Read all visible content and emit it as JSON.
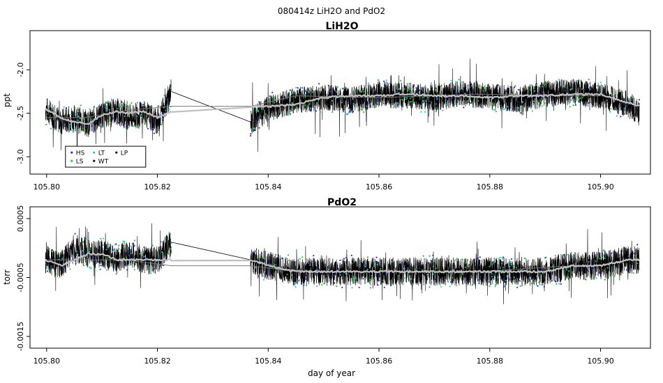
{
  "figure": {
    "suptitle": "080414z   LiH2O and PdO2",
    "xlabel": "day of year"
  },
  "chart_data": [
    {
      "type": "line",
      "title": "LiH2O",
      "xlabel": "",
      "ylabel": "ppt",
      "xlim": [
        105.797,
        105.909
      ],
      "ylim": [
        -3.2,
        -1.55
      ],
      "x_ticks": [
        105.8,
        105.82,
        105.84,
        105.86,
        105.88,
        105.9
      ],
      "x_tick_labels": [
        "105.80",
        "105.82",
        "105.84",
        "105.86",
        "105.88",
        "105.90"
      ],
      "y_ticks": [
        -3.0,
        -2.5,
        -2.0
      ],
      "y_tick_labels": [
        "-3.0",
        "-2.5",
        "-2.0"
      ],
      "grid": false,
      "data_gap": [
        105.8225,
        105.8368
      ],
      "legend": {
        "placement": "bottom-left",
        "entries": [
          {
            "label": "HS",
            "color": "#2b2bd6"
          },
          {
            "label": "LS",
            "color": "#22c022"
          },
          {
            "label": "LT",
            "color": "#22c8c8"
          },
          {
            "label": "WT",
            "color": "#000000"
          },
          {
            "label": "LP",
            "color": "#000000"
          }
        ]
      },
      "series": [
        {
          "kind": "raw",
          "color": "#000000",
          "x": [
            105.7998,
            105.8025,
            105.805,
            105.8075,
            105.81,
            105.8125,
            105.815,
            105.8175,
            105.82,
            105.8225,
            105.8368,
            105.84,
            105.845,
            105.85,
            105.855,
            105.86,
            105.865,
            105.87,
            105.875,
            105.88,
            105.885,
            105.89,
            105.895,
            105.9,
            105.905,
            105.907
          ],
          "y": [
            -2.45,
            -2.6,
            -2.55,
            -2.62,
            -2.52,
            -2.48,
            -2.55,
            -2.5,
            -2.6,
            -2.25,
            -2.6,
            -2.45,
            -2.35,
            -2.32,
            -2.35,
            -2.28,
            -2.3,
            -2.32,
            -2.28,
            -2.3,
            -2.35,
            -2.28,
            -2.25,
            -2.3,
            -2.4,
            -2.5
          ],
          "range": [
            -3.05,
            -1.65
          ]
        },
        {
          "kind": "smoothed",
          "color": "#c0c0c0",
          "x": [
            105.7998,
            105.8025,
            105.805,
            105.8075,
            105.81,
            105.8125,
            105.815,
            105.8175,
            105.82,
            105.8225,
            105.8368,
            105.84,
            105.845,
            105.85,
            105.855,
            105.86,
            105.865,
            105.87,
            105.875,
            105.88,
            105.885,
            105.89,
            105.895,
            105.9,
            105.905,
            105.907
          ],
          "y": [
            -2.45,
            -2.55,
            -2.6,
            -2.62,
            -2.52,
            -2.48,
            -2.5,
            -2.48,
            -2.55,
            -2.48,
            -2.42,
            -2.42,
            -2.4,
            -2.32,
            -2.3,
            -2.3,
            -2.28,
            -2.3,
            -2.3,
            -2.32,
            -2.3,
            -2.3,
            -2.28,
            -2.28,
            -2.38,
            -2.42
          ]
        },
        {
          "kind": "segment-means",
          "color": "#7a7a7a",
          "x": [
            105.7998,
            105.807,
            105.814,
            105.8225,
            105.8368,
            105.845,
            105.86,
            105.878,
            105.895,
            105.9
          ],
          "y": [
            -2.55,
            -2.55,
            -2.47,
            -2.42,
            -2.42,
            -2.3,
            -2.32,
            -2.28,
            -2.3,
            -2.3
          ]
        }
      ]
    },
    {
      "type": "line",
      "title": "PdO2",
      "xlabel": "day of year",
      "ylabel": "torr",
      "xlim": [
        105.797,
        105.909
      ],
      "ylim": [
        -0.0017,
        0.0007
      ],
      "x_ticks": [
        105.8,
        105.82,
        105.84,
        105.86,
        105.88,
        105.9
      ],
      "x_tick_labels": [
        "105.80",
        "105.82",
        "105.84",
        "105.86",
        "105.88",
        "105.90"
      ],
      "y_ticks": [
        -0.0015,
        -0.0005,
        0.0005
      ],
      "y_tick_labels": [
        "-0.0015",
        "-0.0005",
        "0.0005"
      ],
      "grid": false,
      "data_gap": [
        105.8225,
        105.8368
      ],
      "series": [
        {
          "kind": "raw",
          "color": "#000000",
          "x": [
            105.7998,
            105.8025,
            105.805,
            105.8075,
            105.81,
            105.8125,
            105.815,
            105.8175,
            105.82,
            105.8225,
            105.8368,
            105.84,
            105.845,
            105.85,
            105.855,
            105.86,
            105.865,
            105.87,
            105.875,
            105.88,
            105.885,
            105.89,
            105.895,
            105.9,
            105.905,
            105.907
          ],
          "y": [
            -0.0002,
            -0.0003,
            0.0,
            -0.0001,
            -0.0001,
            -0.0002,
            -0.0001,
            -0.0002,
            -0.0002,
            0.0001,
            -0.0002,
            -0.0003,
            -0.0004,
            -0.0004,
            -0.0004,
            -0.0004,
            -0.0004,
            -0.0004,
            -0.0004,
            -0.0004,
            -0.0004,
            -0.0004,
            -0.0003,
            -0.0003,
            -0.0002,
            -0.0002
          ],
          "range": [
            -0.00165,
            0.00055
          ]
        },
        {
          "kind": "smoothed",
          "color": "#c0c0c0",
          "x": [
            105.7998,
            105.8025,
            105.805,
            105.8075,
            105.81,
            105.8125,
            105.815,
            105.8175,
            105.82,
            105.8225,
            105.8368,
            105.84,
            105.845,
            105.85,
            105.855,
            105.86,
            105.865,
            105.87,
            105.875,
            105.88,
            105.885,
            105.89,
            105.895,
            105.9,
            105.905,
            105.907
          ],
          "y": [
            -0.0002,
            -0.0003,
            -0.0002,
            -0.0001,
            -0.0001,
            -0.0002,
            -0.0002,
            -0.0002,
            -0.0002,
            -0.0002,
            -0.0002,
            -0.0003,
            -0.0004,
            -0.0004,
            -0.0004,
            -0.0004,
            -0.0004,
            -0.0004,
            -0.0004,
            -0.0004,
            -0.0004,
            -0.0004,
            -0.0003,
            -0.0003,
            -0.0002,
            -0.0002
          ]
        },
        {
          "kind": "segment-means",
          "color": "#7a7a7a",
          "x": [
            105.7998,
            105.807,
            105.814,
            105.8225,
            105.8368,
            105.845,
            105.86,
            105.878,
            105.895,
            105.9
          ],
          "y": [
            -0.0002,
            -0.0002,
            -0.0002,
            -0.0003,
            -0.0003,
            -0.0004,
            -0.0004,
            -0.0004,
            -0.0003,
            -0.0003
          ]
        }
      ]
    }
  ]
}
